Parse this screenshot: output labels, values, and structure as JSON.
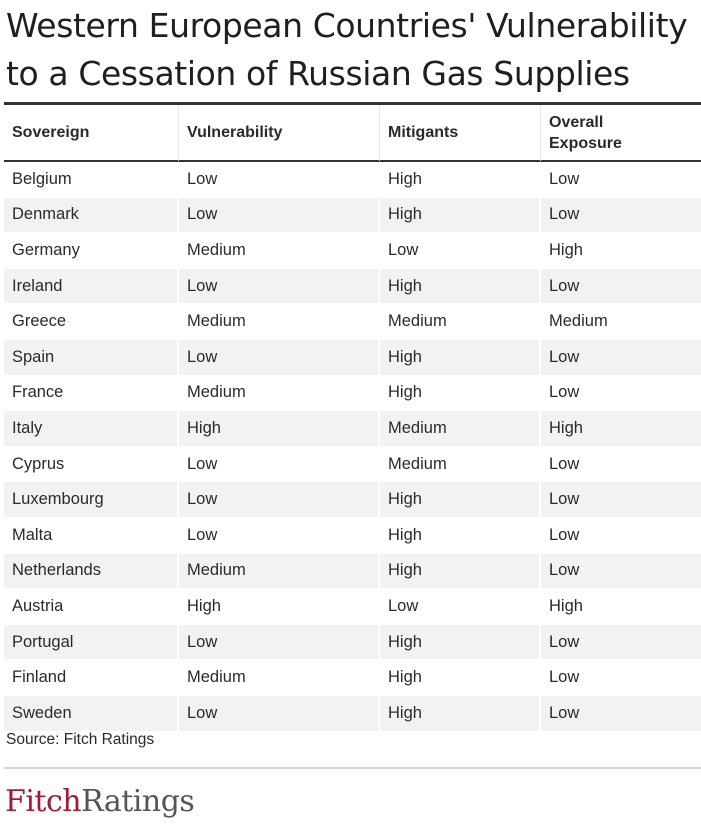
{
  "title": "Western European Countries' Vulnerability to a Cessation of Russian Gas Supplies",
  "source": "Source: Fitch Ratings",
  "logo": {
    "part1": "Fitch",
    "part2": "Ratings",
    "colors": {
      "part1": "#9e1b32",
      "part2": "#555555"
    }
  },
  "chart_data": {
    "type": "table",
    "title": "Western European Countries' Vulnerability to a Cessation of Russian Gas Supplies",
    "columns": [
      "Sovereign",
      "Vulnerability",
      "Mitigants",
      "Overall Exposure"
    ],
    "rows": [
      [
        "Belgium",
        "Low",
        "High",
        "Low"
      ],
      [
        "Denmark",
        "Low",
        "High",
        "Low"
      ],
      [
        "Germany",
        "Medium",
        "Low",
        "High"
      ],
      [
        "Ireland",
        "Low",
        "High",
        "Low"
      ],
      [
        "Greece",
        "Medium",
        "Medium",
        "Medium"
      ],
      [
        "Spain",
        "Low",
        "High",
        "Low"
      ],
      [
        "France",
        "Medium",
        "High",
        "Low"
      ],
      [
        "Italy",
        "High",
        "Medium",
        "High"
      ],
      [
        "Cyprus",
        "Low",
        "Medium",
        "Low"
      ],
      [
        "Luxembourg",
        "Low",
        "High",
        "Low"
      ],
      [
        "Malta",
        "Low",
        "High",
        "Low"
      ],
      [
        "Netherlands",
        "Medium",
        "High",
        "Low"
      ],
      [
        "Austria",
        "High",
        "Low",
        "High"
      ],
      [
        "Portugal",
        "Low",
        "High",
        "Low"
      ],
      [
        "Finland",
        "Medium",
        "High",
        "Low"
      ],
      [
        "Sweden",
        "Low",
        "High",
        "Low"
      ]
    ]
  }
}
